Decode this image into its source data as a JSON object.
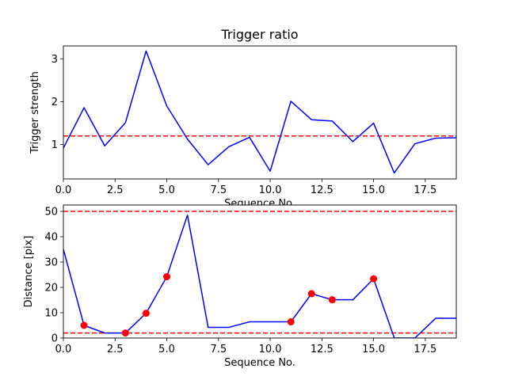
{
  "chart_data": [
    {
      "type": "line",
      "title": "Trigger ratio",
      "xlabel": "Sequence No.",
      "ylabel": "Trigger strength",
      "xlim": [
        0,
        19
      ],
      "ylim": [
        0.2,
        3.3
      ],
      "xticks": [
        0,
        2.5,
        5,
        7.5,
        10,
        12.5,
        15,
        17.5
      ],
      "xtick_labels": [
        "0.0",
        "2.5",
        "5.0",
        "7.5",
        "10.0",
        "12.5",
        "15.0",
        "17.5"
      ],
      "yticks": [
        1,
        2,
        3
      ],
      "ytick_labels": [
        "1",
        "2",
        "3"
      ],
      "grid": false,
      "series": [
        {
          "color": "#0000ff",
          "style": "solid",
          "x": [
            0,
            1,
            2,
            3,
            4,
            5,
            6,
            7,
            8,
            9,
            10,
            11,
            12,
            13,
            14,
            15,
            16,
            17,
            18,
            19
          ],
          "y": [
            0.92,
            1.86,
            0.97,
            1.51,
            3.18,
            1.9,
            1.13,
            0.53,
            0.95,
            1.17,
            0.38,
            2.01,
            1.58,
            1.55,
            1.07,
            1.5,
            0.34,
            1.02,
            1.15,
            1.16
          ]
        }
      ],
      "hlines": [
        {
          "y": 1.2,
          "color": "#ff0000",
          "style": "dashed"
        }
      ],
      "markers": []
    },
    {
      "type": "line",
      "title": "",
      "xlabel": "Sequence No.",
      "ylabel": "Distance [pix]",
      "xlim": [
        0,
        19
      ],
      "ylim": [
        0,
        52.5
      ],
      "xticks": [
        0,
        2.5,
        5,
        7.5,
        10,
        12.5,
        15,
        17.5
      ],
      "xtick_labels": [
        "0.0",
        "2.5",
        "5.0",
        "7.5",
        "10.0",
        "12.5",
        "15.0",
        "17.5"
      ],
      "yticks": [
        0,
        10,
        20,
        30,
        40,
        50
      ],
      "ytick_labels": [
        "0",
        "10",
        "20",
        "30",
        "40",
        "50"
      ],
      "grid": false,
      "series": [
        {
          "color": "#0000ff",
          "style": "solid",
          "x": [
            0,
            1,
            2,
            3,
            4,
            5,
            6,
            7,
            8,
            9,
            10,
            11,
            12,
            13,
            14,
            15,
            16,
            17,
            18,
            19
          ],
          "y": [
            35,
            5,
            2,
            2,
            9.8,
            24.2,
            48.5,
            4.2,
            4.2,
            6.4,
            6.4,
            6.4,
            17.5,
            15.1,
            15.1,
            23.4,
            0,
            0,
            7.8,
            7.8
          ]
        }
      ],
      "hlines": [
        {
          "y": 50,
          "color": "#ff0000",
          "style": "dashed"
        },
        {
          "y": 2,
          "color": "#ff0000",
          "style": "dashed"
        }
      ],
      "markers": [
        {
          "color": "#ff0000",
          "x": [
            1,
            3,
            4,
            5,
            11,
            12,
            13,
            15
          ],
          "y": [
            5,
            2,
            9.8,
            24.2,
            6.4,
            17.5,
            15.1,
            23.4
          ]
        }
      ]
    }
  ]
}
